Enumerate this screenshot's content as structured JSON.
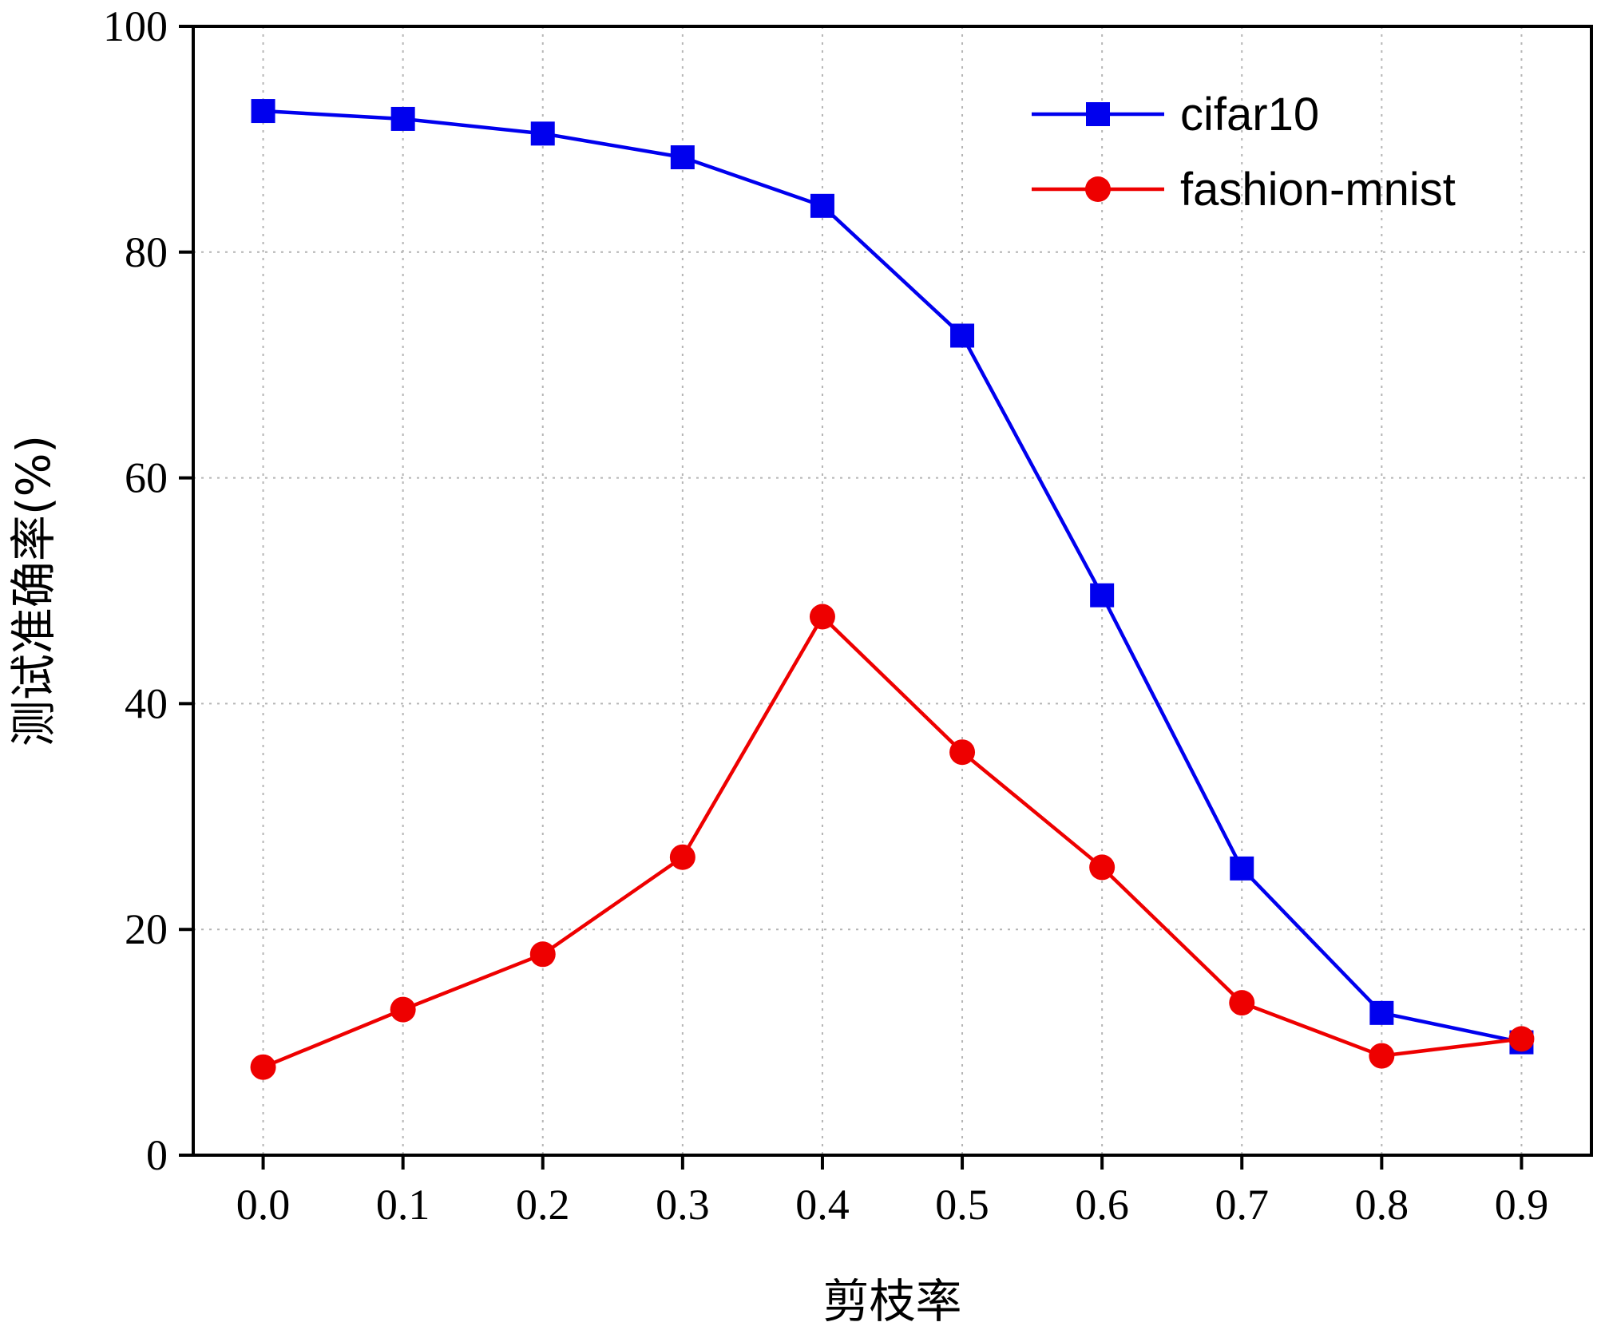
{
  "chart_data": {
    "type": "line",
    "title": "",
    "xlabel": "剪枝率",
    "ylabel": "测试准确率(%)",
    "x": [
      0.0,
      0.1,
      0.2,
      0.3,
      0.4,
      0.5,
      0.6,
      0.7,
      0.8,
      0.9
    ],
    "x_tick_labels": [
      "0.0",
      "0.1",
      "0.2",
      "0.3",
      "0.4",
      "0.5",
      "0.6",
      "0.7",
      "0.8",
      "0.9"
    ],
    "y_tick_labels": [
      "0",
      "20",
      "40",
      "60",
      "80",
      "100"
    ],
    "y_ticks": [
      0,
      20,
      40,
      60,
      80,
      100
    ],
    "xlim": [
      -0.05,
      0.95
    ],
    "ylim": [
      0,
      100
    ],
    "grid": true,
    "legend_position": "top-right",
    "series": [
      {
        "name": "cifar10",
        "color": "#0000ee",
        "marker": "square",
        "values": [
          92.5,
          91.8,
          90.5,
          88.4,
          84.1,
          72.6,
          49.6,
          25.4,
          12.6,
          10.0
        ]
      },
      {
        "name": "fashion-mnist",
        "color": "#ee0000",
        "marker": "circle",
        "values": [
          7.8,
          12.9,
          17.8,
          26.4,
          47.7,
          35.7,
          25.5,
          13.5,
          8.8,
          10.3
        ]
      }
    ]
  }
}
